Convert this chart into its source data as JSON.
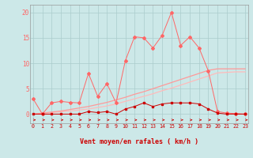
{
  "x": [
    0,
    1,
    2,
    3,
    4,
    5,
    6,
    7,
    8,
    9,
    10,
    11,
    12,
    13,
    14,
    15,
    16,
    17,
    18,
    19,
    20,
    21,
    22,
    23
  ],
  "line_rafales": [
    3.0,
    0.0,
    2.2,
    2.5,
    2.3,
    2.2,
    8.0,
    3.5,
    6.0,
    2.2,
    10.5,
    15.2,
    15.0,
    13.0,
    15.5,
    20.0,
    13.5,
    15.2,
    13.0,
    8.5,
    0.5,
    0.2,
    0.1,
    0.0
  ],
  "line_moyen": [
    0.0,
    0.0,
    0.0,
    0.0,
    0.0,
    0.0,
    0.5,
    0.3,
    0.5,
    0.0,
    1.0,
    1.5,
    2.2,
    1.5,
    2.0,
    2.2,
    2.2,
    2.2,
    2.0,
    1.0,
    0.2,
    0.0,
    0.0,
    0.0
  ],
  "line_trend1": [
    0.0,
    0.15,
    0.3,
    0.45,
    0.6,
    0.8,
    1.0,
    1.3,
    1.6,
    2.0,
    2.5,
    3.0,
    3.5,
    4.0,
    4.6,
    5.1,
    5.7,
    6.3,
    6.9,
    7.5,
    8.1,
    8.2,
    8.3,
    8.3
  ],
  "line_trend2": [
    0.0,
    0.2,
    0.4,
    0.6,
    0.9,
    1.2,
    1.5,
    1.9,
    2.3,
    2.8,
    3.3,
    3.9,
    4.4,
    5.0,
    5.6,
    6.2,
    6.8,
    7.4,
    8.0,
    8.6,
    8.9,
    8.9,
    8.9,
    8.9
  ],
  "bg_color": "#cce8e8",
  "grid_color": "#aacccc",
  "color_rafales": "#ff6666",
  "color_moyen": "#cc0000",
  "color_trend1": "#ffbbbb",
  "color_trend2": "#ff9999",
  "xlabel": "Vent moyen/en rafales ( km/h )",
  "ylabel_ticks": [
    0,
    5,
    10,
    15,
    20
  ],
  "xlim": [
    -0.3,
    23.3
  ],
  "ylim": [
    -1.8,
    21.5
  ]
}
